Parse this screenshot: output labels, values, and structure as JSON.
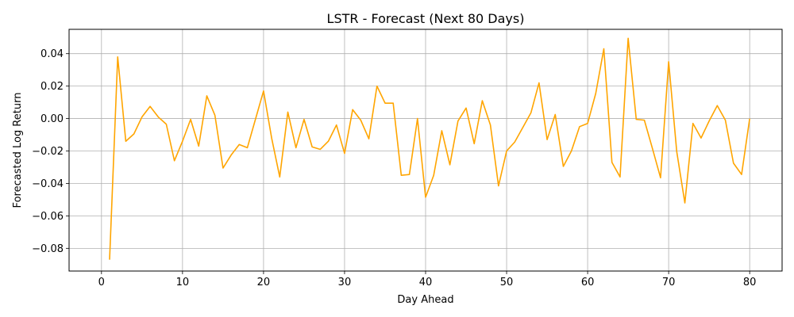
{
  "chart_data": {
    "type": "line",
    "title": "LSTR - Forecast (Next 80 Days)",
    "xlabel": "Day Ahead",
    "ylabel": "Forecasted Log Return",
    "xlim": [
      -4,
      84
    ],
    "ylim": [
      -0.094,
      0.055
    ],
    "x_ticks": [
      0,
      10,
      20,
      30,
      40,
      50,
      60,
      70,
      80
    ],
    "x_tick_labels": [
      "0",
      "10",
      "20",
      "30",
      "40",
      "50",
      "60",
      "70",
      "80"
    ],
    "y_ticks": [
      -0.08,
      -0.06,
      -0.04,
      -0.02,
      0.0,
      0.02,
      0.04
    ],
    "y_tick_labels": [
      "−0.08",
      "−0.06",
      "−0.04",
      "−0.02",
      "0.00",
      "0.02",
      "0.04"
    ],
    "grid": true,
    "line_color": "#FFA500",
    "series": [
      {
        "x": [
          1,
          2,
          3,
          4,
          5,
          6,
          7,
          8,
          9,
          10,
          11,
          12,
          13,
          14,
          15,
          16,
          17,
          18,
          19,
          20,
          21,
          22,
          23,
          24,
          25,
          26,
          27,
          28,
          29,
          30,
          31,
          32,
          33,
          34,
          35,
          36,
          37,
          38,
          39,
          40,
          41,
          42,
          43,
          44,
          45,
          46,
          47,
          48,
          49,
          50,
          51,
          52,
          53,
          54,
          55,
          56,
          57,
          58,
          59,
          60,
          61,
          62,
          63,
          64,
          65,
          66,
          67,
          68,
          69,
          70,
          71,
          72,
          73,
          74,
          75,
          76,
          77,
          78,
          79,
          80
        ],
        "values": [
          -0.087,
          0.038,
          -0.014,
          -0.0095,
          0.001,
          0.0075,
          0.001,
          -0.0035,
          -0.026,
          -0.014,
          -0.0005,
          -0.017,
          0.014,
          0.002,
          -0.0305,
          -0.0225,
          -0.016,
          -0.018,
          -0.0005,
          0.017,
          -0.012,
          -0.036,
          0.004,
          -0.018,
          -0.0005,
          -0.0175,
          -0.019,
          -0.014,
          -0.004,
          -0.0215,
          0.0055,
          -0.001,
          -0.0125,
          0.02,
          0.0095,
          0.0095,
          -0.035,
          -0.0345,
          0.0,
          -0.0485,
          -0.035,
          -0.0075,
          -0.0285,
          -0.0015,
          0.0065,
          -0.0155,
          0.011,
          -0.004,
          -0.0415,
          -0.02,
          -0.0145,
          -0.0055,
          0.0035,
          0.022,
          -0.013,
          0.0025,
          -0.0295,
          -0.02,
          -0.005,
          -0.003,
          0.0155,
          0.043,
          -0.027,
          -0.036,
          0.0495,
          -0.0005,
          -0.001,
          -0.0185,
          -0.0365,
          0.035,
          -0.0205,
          -0.052,
          -0.003,
          -0.012,
          -0.0015,
          0.008,
          -0.001,
          -0.0275,
          -0.0345,
          0.0
        ]
      }
    ]
  }
}
